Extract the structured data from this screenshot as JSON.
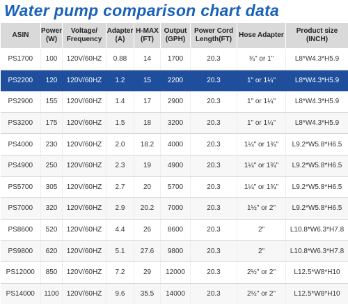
{
  "title": "Water pump comparison chart data",
  "table": {
    "header": [
      "ASIN",
      "Power\n(W)",
      "Voltage/\nFrequency",
      "Adapter\n(A)",
      "H-MAX\n(FT)",
      "Output\n(GPH)",
      "Power Cord\nLength(FT)",
      "Hose Adapter",
      "Product size\n(INCH)"
    ],
    "rows": [
      [
        "PS1700",
        "100",
        "120V/60HZ",
        "0.88",
        "14",
        "1700",
        "20.3",
        "¾\" or 1\"",
        "L8*W4.3*H5.9"
      ],
      [
        "PS2200",
        "120",
        "120V/60HZ",
        "1.2",
        "15",
        "2200",
        "20.3",
        "1\" or 1¼\"",
        "L8*W4.3*H5.9"
      ],
      [
        "PS2900",
        "155",
        "120V/60HZ",
        "1.4",
        "17",
        "2900",
        "20.3",
        "1\" or 1¼\"",
        "L8*W4.3*H5.9"
      ],
      [
        "PS3200",
        "175",
        "120V/60HZ",
        "1.5",
        "18",
        "3200",
        "20.3",
        "1\" or 1¼\"",
        "L8*W4.3*H5.9"
      ],
      [
        "PS4000",
        "230",
        "120V/60HZ",
        "2.0",
        "18.2",
        "4000",
        "20.3",
        "1¼\" or 1¾\"",
        "L9.2*W5.8*H6.5"
      ],
      [
        "PS4900",
        "250",
        "120V/60HZ",
        "2.3",
        "19",
        "4900",
        "20.3",
        "1¼\" or 1¾\"",
        "L9.2*W5.8*H6.5"
      ],
      [
        "PS5700",
        "305",
        "120V/60HZ",
        "2.7",
        "20",
        "5700",
        "20.3",
        "1¼\" or 1¾\"",
        "L9.2*W5.8*H6.5"
      ],
      [
        "PS7000",
        "320",
        "120V/60HZ",
        "2.9",
        "20.2",
        "7000",
        "20.3",
        "1½\" or 2\"",
        "L9.2*W5.8*H6.5"
      ],
      [
        "PS8600",
        "520",
        "120V/60HZ",
        "4.4",
        "26",
        "8600",
        "20.3",
        "2\"",
        "L10.8*W6.3*H7.8"
      ],
      [
        "PS9800",
        "620",
        "120V/60HZ",
        "5.1",
        "27.6",
        "9800",
        "20.3",
        "2\"",
        "L10.8*W6.3*H7.8"
      ],
      [
        "PS12000",
        "850",
        "120V/60HZ",
        "7.2",
        "29",
        "12000",
        "20.3",
        "2½\" or 2\"",
        "L12.5*W8*H10"
      ],
      [
        "PS14000",
        "1100",
        "120V/60HZ",
        "9.6",
        "35.5",
        "14000",
        "20.3",
        "2½\" or 2\"",
        "L12.5*W8*H10"
      ]
    ]
  }
}
